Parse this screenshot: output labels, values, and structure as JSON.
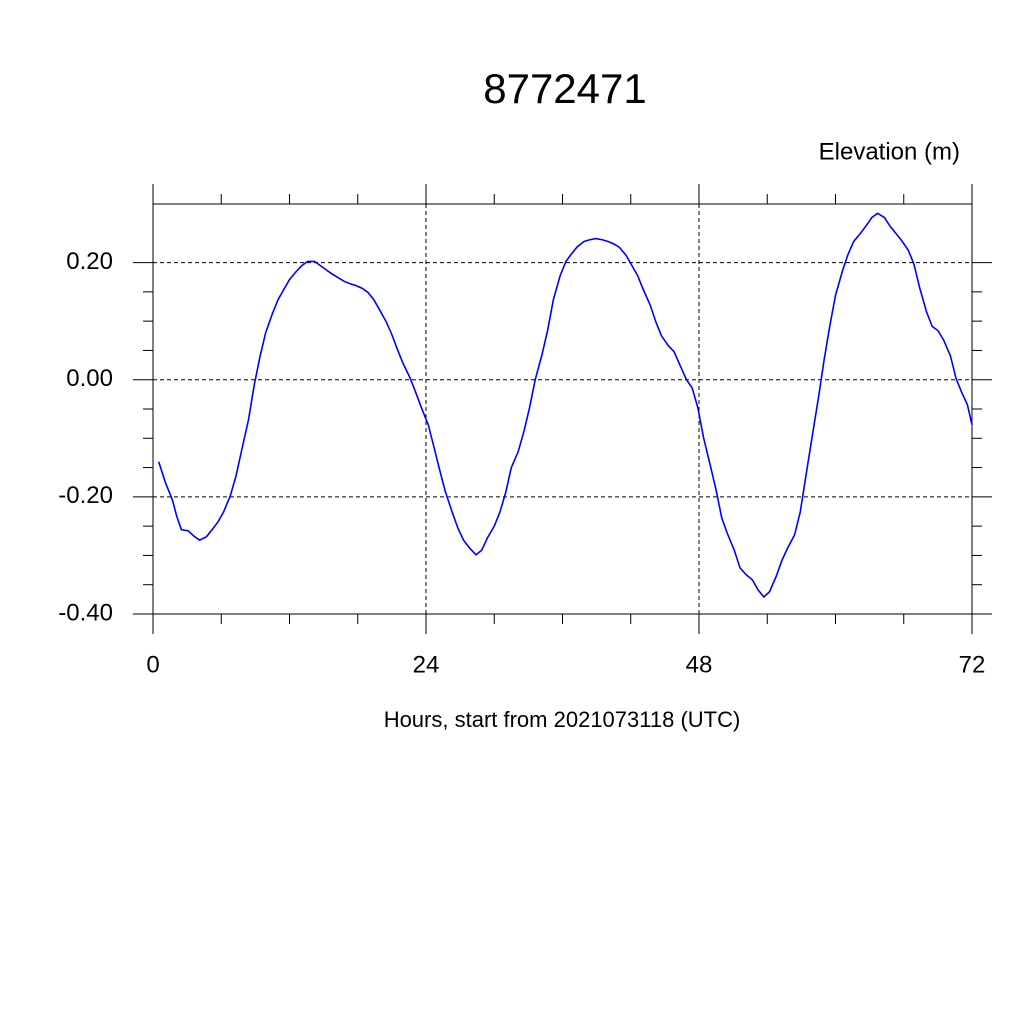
{
  "chart_data": {
    "type": "line",
    "title": "8772471",
    "y_label": "Elevation (m)",
    "x_label": "Hours, start from 2021073118 (UTC)",
    "xlim": [
      0,
      72
    ],
    "xticks": [
      0,
      24,
      48,
      72
    ],
    "ylim": [
      -0.4,
      0.3
    ],
    "yticks": [
      {
        "value": -0.4,
        "label": "-0.40"
      },
      {
        "value": -0.2,
        "label": "-0.20"
      },
      {
        "value": 0,
        "label": "0.00"
      },
      {
        "value": 0.2,
        "label": "0.20"
      }
    ],
    "grid": true,
    "x": [
      0.5,
      1.1,
      1.7,
      2.1,
      2.5,
      3.1,
      3.6,
      4.1,
      4.7,
      5.2,
      5.7,
      6.2,
      6.8,
      7.3,
      7.8,
      8.4,
      8.9,
      9.4,
      9.9,
      10.5,
      11,
      11.5,
      12,
      12.6,
      13.1,
      13.6,
      14.2,
      14.7,
      15.2,
      15.7,
      16.3,
      16.8,
      17.3,
      17.8,
      18.4,
      18.9,
      19.4,
      19.9,
      20.5,
      21,
      21.5,
      22,
      22.6,
      23.1,
      23.6,
      24.2,
      24.7,
      25.2,
      25.7,
      26.3,
      26.8,
      27.3,
      27.9,
      28.4,
      28.9,
      29.4,
      30,
      30.5,
      31,
      31.5,
      32.1,
      32.6,
      33.1,
      33.6,
      34.2,
      34.7,
      35.2,
      35.8,
      36.3,
      36.8,
      37.3,
      37.9,
      38.4,
      38.9,
      39.5,
      40,
      40.5,
      41,
      41.6,
      42.1,
      42.6,
      43.1,
      43.7,
      44.2,
      44.7,
      45.3,
      45.8,
      46.3,
      46.9,
      47.4,
      47.9,
      48.4,
      49,
      49.5,
      50,
      50.5,
      51.1,
      51.6,
      52.1,
      52.7,
      53.2,
      53.7,
      54.2,
      54.8,
      55.3,
      55.8,
      56.4,
      56.9,
      57.4,
      57.9,
      58.5,
      59,
      59.5,
      60,
      60.6,
      61.1,
      61.6,
      62.2,
      62.7,
      63.2,
      63.7,
      64.3,
      64.8,
      65.3,
      65.8,
      66.4,
      66.9,
      67.4,
      68,
      68.5,
      69,
      69.5,
      70.1,
      70.6,
      71.1,
      71.6,
      72
    ],
    "series": [
      {
        "color": "#0000ff",
        "values": [
          -0.14,
          -0.176,
          -0.205,
          -0.234,
          -0.256,
          -0.258,
          -0.267,
          -0.274,
          -0.268,
          -0.256,
          -0.243,
          -0.226,
          -0.198,
          -0.164,
          -0.12,
          -0.068,
          -0.009,
          0.039,
          0.08,
          0.113,
          0.137,
          0.154,
          0.171,
          0.185,
          0.195,
          0.202,
          0.202,
          0.195,
          0.188,
          0.181,
          0.174,
          0.168,
          0.164,
          0.161,
          0.156,
          0.149,
          0.137,
          0.12,
          0.099,
          0.077,
          0.051,
          0.027,
          0.003,
          -0.022,
          -0.048,
          -0.077,
          -0.115,
          -0.154,
          -0.191,
          -0.226,
          -0.253,
          -0.274,
          -0.289,
          -0.299,
          -0.291,
          -0.27,
          -0.25,
          -0.226,
          -0.193,
          -0.15,
          -0.123,
          -0.089,
          -0.048,
          0,
          0.043,
          0.085,
          0.137,
          0.178,
          0.202,
          0.215,
          0.227,
          0.236,
          0.239,
          0.241,
          0.239,
          0.236,
          0.232,
          0.226,
          0.212,
          0.195,
          0.178,
          0.154,
          0.128,
          0.099,
          0.075,
          0.058,
          0.048,
          0.026,
          0,
          -0.014,
          -0.048,
          -0.099,
          -0.147,
          -0.188,
          -0.236,
          -0.263,
          -0.291,
          -0.321,
          -0.332,
          -0.342,
          -0.359,
          -0.371,
          -0.362,
          -0.335,
          -0.308,
          -0.287,
          -0.265,
          -0.226,
          -0.164,
          -0.103,
          -0.031,
          0.034,
          0.092,
          0.144,
          0.185,
          0.214,
          0.236,
          0.25,
          0.263,
          0.277,
          0.284,
          0.277,
          0.262,
          0.25,
          0.238,
          0.221,
          0.197,
          0.157,
          0.116,
          0.091,
          0.084,
          0.068,
          0.041,
          0.002,
          -0.022,
          -0.043,
          -0.077
        ]
      }
    ]
  }
}
